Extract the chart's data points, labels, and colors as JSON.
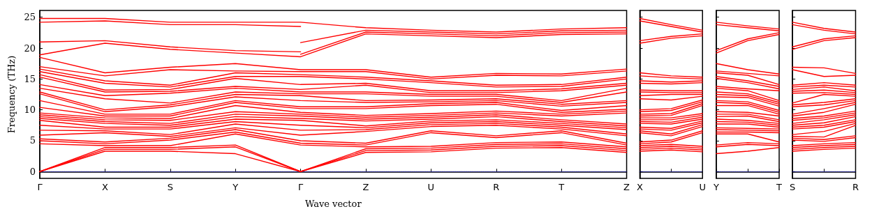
{
  "chart_data": [
    {
      "type": "line",
      "xlabel": "Wave vector",
      "ylabel": "Frequency (THz)",
      "categories": [
        "Γ",
        "X",
        "S",
        "Y",
        "Γ",
        "Z",
        "U",
        "R",
        "T",
        "Z"
      ],
      "ylim": [
        -1.1,
        26.1
      ],
      "yticks": [
        0,
        5,
        10,
        15,
        20,
        25
      ],
      "marker": "none",
      "line_style": "solid",
      "ref_lines": [
        {
          "axis": "y",
          "value": 0,
          "color": "#0000ff",
          "line_style": "dotted"
        }
      ],
      "series": [
        {
          "color": "#ff0000",
          "values": [
            24.8,
            24.8,
            24.2,
            24.2,
            24.2,
            23.3,
            22.9,
            22.6,
            23.1,
            23.3
          ]
        },
        {
          "color": "#ff0000",
          "values": [
            24.2,
            24.4,
            23.8,
            23.8,
            23.5,
            null,
            null,
            null,
            null,
            null
          ]
        },
        {
          "color": "#ff0000",
          "values": [
            null,
            null,
            null,
            null,
            20.9,
            22.9,
            22.6,
            22.3,
            22.8,
            22.9
          ]
        },
        {
          "color": "#ff0000",
          "values": [
            21.0,
            21.2,
            20.2,
            19.6,
            19.4,
            null,
            null,
            null,
            null,
            null
          ]
        },
        {
          "color": "#ff0000",
          "values": [
            null,
            null,
            null,
            null,
            19.0,
            22.6,
            22.3,
            22.0,
            22.5,
            22.6
          ]
        },
        {
          "color": "#ff0000",
          "values": [
            18.9,
            20.8,
            19.8,
            19.2,
            18.6,
            22.3,
            22.0,
            21.7,
            22.2,
            22.3
          ]
        },
        {
          "color": "#ff0000",
          "values": [
            18.5,
            16.0,
            16.9,
            17.5,
            16.5,
            16.5,
            15.3,
            15.9,
            15.8,
            16.6
          ]
        },
        {
          "color": "#ff0000",
          "values": [
            17.0,
            15.5,
            16.5,
            16.3,
            16.2,
            16.2,
            15.0,
            15.6,
            15.5,
            16.3
          ]
        },
        {
          "color": "#ff0000",
          "values": [
            16.6,
            14.7,
            14.0,
            16.0,
            15.7,
            15.3,
            14.7,
            14.0,
            14.1,
            15.3
          ]
        },
        {
          "color": "#ff0000",
          "values": [
            16.2,
            14.3,
            13.7,
            15.4,
            15.4,
            15.0,
            14.4,
            13.7,
            13.8,
            15.0
          ]
        },
        {
          "color": "#ff0000",
          "values": [
            15.7,
            13.2,
            13.3,
            15.1,
            14.1,
            14.3,
            13.1,
            13.1,
            13.4,
            14.3
          ]
        },
        {
          "color": "#ff0000",
          "values": [
            15.3,
            12.9,
            13.0,
            13.8,
            13.3,
            14.0,
            12.8,
            12.8,
            13.1,
            14.0
          ]
        },
        {
          "color": "#ff0000",
          "values": [
            14.1,
            12.3,
            12.7,
            13.5,
            12.9,
            12.9,
            12.5,
            12.5,
            11.5,
            13.5
          ]
        },
        {
          "color": "#ff0000",
          "values": [
            13.5,
            11.8,
            11.1,
            12.9,
            12.6,
            12.6,
            12.2,
            12.2,
            11.2,
            12.9
          ]
        },
        {
          "color": "#ff0000",
          "values": [
            12.9,
            10.0,
            10.8,
            12.5,
            12.3,
            11.5,
            11.6,
            11.8,
            10.9,
            11.5
          ]
        },
        {
          "color": "#ff0000",
          "values": [
            12.6,
            9.7,
            10.5,
            12.1,
            11.5,
            11.2,
            11.3,
            11.5,
            10.6,
            11.2
          ]
        },
        {
          "color": "#ff0000",
          "values": [
            11.5,
            9.3,
            9.3,
            11.5,
            10.5,
            10.5,
            11.0,
            11.2,
            9.9,
            10.7
          ]
        },
        {
          "color": "#ff0000",
          "values": [
            10.4,
            9.0,
            9.0,
            11.2,
            10.2,
            10.2,
            10.7,
            10.9,
            9.6,
            10.1
          ]
        },
        {
          "color": "#ff0000",
          "values": [
            9.5,
            8.7,
            8.6,
            10.7,
            9.6,
            9.1,
            9.4,
            9.8,
            9.3,
            9.8
          ]
        },
        {
          "color": "#ff0000",
          "values": [
            9.2,
            8.4,
            8.3,
            9.7,
            9.3,
            8.8,
            9.1,
            9.5,
            9.0,
            9.5
          ]
        },
        {
          "color": "#ff0000",
          "values": [
            8.9,
            8.1,
            7.8,
            9.3,
            9.0,
            8.5,
            8.8,
            9.2,
            8.4,
            7.7
          ]
        },
        {
          "color": "#ff0000",
          "values": [
            8.6,
            7.8,
            7.5,
            8.9,
            8.6,
            8.2,
            8.5,
            8.9,
            8.1,
            7.4
          ]
        },
        {
          "color": "#ff0000",
          "values": [
            8.3,
            7.2,
            7.2,
            8.5,
            8.3,
            7.4,
            8.2,
            8.4,
            7.8,
            7.1
          ]
        },
        {
          "color": "#ff0000",
          "values": [
            7.5,
            6.9,
            6.9,
            8.1,
            7.5,
            7.1,
            7.9,
            8.1,
            7.5,
            6.8
          ]
        },
        {
          "color": "#ff0000",
          "values": [
            6.7,
            6.6,
            6.0,
            7.7,
            6.7,
            6.8,
            7.6,
            7.8,
            7.2,
            6.1
          ]
        },
        {
          "color": "#ff0000",
          "values": [
            5.9,
            6.3,
            5.7,
            7.1,
            5.9,
            6.5,
            7.3,
            7.5,
            6.9,
            5.8
          ]
        },
        {
          "color": "#ff0000",
          "values": [
            5.3,
            4.8,
            5.4,
            6.8,
            5.0,
            4.6,
            6.6,
            5.8,
            6.6,
            4.6
          ]
        },
        {
          "color": "#ff0000",
          "values": [
            5.0,
            4.5,
            5.1,
            6.4,
            4.6,
            4.3,
            6.3,
            5.5,
            6.3,
            4.3
          ]
        },
        {
          "color": "#ff0000",
          "values": [
            4.5,
            4.2,
            4.2,
            6.1,
            4.3,
            4.0,
            4.1,
            4.7,
            4.8,
            4.0
          ]
        },
        {
          "color": "#ff0000",
          "values": [
            0,
            3.9,
            3.9,
            4.3,
            0,
            3.7,
            3.8,
            4.4,
            4.5,
            3.7
          ]
        },
        {
          "color": "#ff0000",
          "values": [
            0,
            3.6,
            3.6,
            4.0,
            0,
            3.4,
            3.5,
            4.1,
            4.2,
            3.4
          ]
        },
        {
          "color": "#ff0000",
          "values": [
            0,
            3.3,
            3.3,
            2.9,
            0,
            3.1,
            3.2,
            3.8,
            3.9,
            3.1
          ]
        }
      ]
    },
    {
      "type": "line",
      "categories": [
        "X",
        null,
        "U"
      ],
      "ylim": [
        -1.1,
        26.1
      ],
      "yticks": [
        0,
        5,
        10,
        15,
        20,
        25
      ],
      "tick_labels": "x",
      "marker": "none",
      "line_style": "solid",
      "ref_lines": [
        {
          "axis": "y",
          "value": 0,
          "color": "#0000ff",
          "line_style": "dotted"
        }
      ],
      "series": [
        {
          "color": "#ff0000",
          "values": [
            24.8,
            23.8,
            22.9
          ]
        },
        {
          "color": "#ff0000",
          "values": [
            24.4,
            23.5,
            22.6
          ]
        },
        {
          "color": "#ff0000",
          "values": [
            21.2,
            21.9,
            22.3
          ]
        },
        {
          "color": "#ff0000",
          "values": [
            20.8,
            21.6,
            22.0
          ]
        },
        {
          "color": "#ff0000",
          "values": [
            16.0,
            15.5,
            15.3
          ]
        },
        {
          "color": "#ff0000",
          "values": [
            15.5,
            15.2,
            15.0
          ]
        },
        {
          "color": "#ff0000",
          "values": [
            14.7,
            14.5,
            14.7
          ]
        },
        {
          "color": "#ff0000",
          "values": [
            14.3,
            14.2,
            14.4
          ]
        },
        {
          "color": "#ff0000",
          "values": [
            13.2,
            13.1,
            13.1
          ]
        },
        {
          "color": "#ff0000",
          "values": [
            12.9,
            12.8,
            12.8
          ]
        },
        {
          "color": "#ff0000",
          "values": [
            12.3,
            12.5,
            12.5
          ]
        },
        {
          "color": "#ff0000",
          "values": [
            11.8,
            11.6,
            12.2
          ]
        },
        {
          "color": "#ff0000",
          "values": [
            10.0,
            10.2,
            11.6
          ]
        },
        {
          "color": "#ff0000",
          "values": [
            9.7,
            9.9,
            11.3
          ]
        },
        {
          "color": "#ff0000",
          "values": [
            9.3,
            9.4,
            11.0
          ]
        },
        {
          "color": "#ff0000",
          "values": [
            9.0,
            9.1,
            10.7
          ]
        },
        {
          "color": "#ff0000",
          "values": [
            8.7,
            8.7,
            9.4
          ]
        },
        {
          "color": "#ff0000",
          "values": [
            8.4,
            8.4,
            9.1
          ]
        },
        {
          "color": "#ff0000",
          "values": [
            8.1,
            8.0,
            8.8
          ]
        },
        {
          "color": "#ff0000",
          "values": [
            7.8,
            7.7,
            8.5
          ]
        },
        {
          "color": "#ff0000",
          "values": [
            7.2,
            7.0,
            8.2
          ]
        },
        {
          "color": "#ff0000",
          "values": [
            6.9,
            6.7,
            7.9
          ]
        },
        {
          "color": "#ff0000",
          "values": [
            6.6,
            6.1,
            7.6
          ]
        },
        {
          "color": "#ff0000",
          "values": [
            6.3,
            5.8,
            7.3
          ]
        },
        {
          "color": "#ff0000",
          "values": [
            4.8,
            5.1,
            6.6
          ]
        },
        {
          "color": "#ff0000",
          "values": [
            4.5,
            4.8,
            6.3
          ]
        },
        {
          "color": "#ff0000",
          "values": [
            4.2,
            4.4,
            4.1
          ]
        },
        {
          "color": "#ff0000",
          "values": [
            3.9,
            4.1,
            3.8
          ]
        },
        {
          "color": "#ff0000",
          "values": [
            3.6,
            3.8,
            3.5
          ]
        },
        {
          "color": "#ff0000",
          "values": [
            3.3,
            3.5,
            3.2
          ]
        }
      ]
    },
    {
      "type": "line",
      "categories": [
        "Y",
        null,
        "T"
      ],
      "ylim": [
        -1.1,
        26.1
      ],
      "yticks": [
        0,
        5,
        10,
        15,
        20,
        25
      ],
      "tick_labels": "x",
      "marker": "none",
      "line_style": "solid",
      "ref_lines": [
        {
          "axis": "y",
          "value": 0,
          "color": "#0000ff",
          "line_style": "dotted"
        }
      ],
      "series": [
        {
          "color": "#ff0000",
          "values": [
            24.2,
            23.6,
            23.1
          ]
        },
        {
          "color": "#ff0000",
          "values": [
            23.8,
            23.3,
            22.8
          ]
        },
        {
          "color": "#ff0000",
          "values": [
            19.6,
            21.5,
            22.5
          ]
        },
        {
          "color": "#ff0000",
          "values": [
            19.2,
            21.2,
            22.2
          ]
        },
        {
          "color": "#ff0000",
          "values": [
            17.5,
            16.5,
            15.8
          ]
        },
        {
          "color": "#ff0000",
          "values": [
            16.3,
            15.9,
            15.5
          ]
        },
        {
          "color": "#ff0000",
          "values": [
            16.0,
            15.6,
            14.1
          ]
        },
        {
          "color": "#ff0000",
          "values": [
            15.4,
            14.7,
            13.8
          ]
        },
        {
          "color": "#ff0000",
          "values": [
            15.1,
            14.4,
            13.4
          ]
        },
        {
          "color": "#ff0000",
          "values": [
            13.8,
            13.4,
            13.1
          ]
        },
        {
          "color": "#ff0000",
          "values": [
            13.5,
            13.1,
            11.5
          ]
        },
        {
          "color": "#ff0000",
          "values": [
            12.9,
            12.6,
            11.2
          ]
        },
        {
          "color": "#ff0000",
          "values": [
            12.5,
            12.3,
            10.9
          ]
        },
        {
          "color": "#ff0000",
          "values": [
            12.1,
            12.0,
            10.6
          ]
        },
        {
          "color": "#ff0000",
          "values": [
            11.5,
            11.3,
            9.9
          ]
        },
        {
          "color": "#ff0000",
          "values": [
            11.2,
            11.0,
            9.6
          ]
        },
        {
          "color": "#ff0000",
          "values": [
            10.7,
            10.7,
            9.3
          ]
        },
        {
          "color": "#ff0000",
          "values": [
            9.7,
            9.6,
            9.0
          ]
        },
        {
          "color": "#ff0000",
          "values": [
            9.3,
            9.3,
            8.4
          ]
        },
        {
          "color": "#ff0000",
          "values": [
            8.9,
            9.0,
            8.1
          ]
        },
        {
          "color": "#ff0000",
          "values": [
            8.5,
            8.3,
            7.8
          ]
        },
        {
          "color": "#ff0000",
          "values": [
            8.1,
            8.0,
            7.5
          ]
        },
        {
          "color": "#ff0000",
          "values": [
            7.7,
            7.7,
            7.2
          ]
        },
        {
          "color": "#ff0000",
          "values": [
            7.1,
            7.0,
            6.9
          ]
        },
        {
          "color": "#ff0000",
          "values": [
            6.8,
            6.7,
            6.6
          ]
        },
        {
          "color": "#ff0000",
          "values": [
            6.4,
            6.4,
            6.3
          ]
        },
        {
          "color": "#ff0000",
          "values": [
            6.1,
            6.1,
            4.8
          ]
        },
        {
          "color": "#ff0000",
          "values": [
            4.3,
            4.7,
            4.5
          ]
        },
        {
          "color": "#ff0000",
          "values": [
            4.0,
            4.4,
            4.2
          ]
        },
        {
          "color": "#ff0000",
          "values": [
            2.9,
            3.3,
            3.9
          ]
        }
      ]
    },
    {
      "type": "line",
      "categories": [
        "S",
        null,
        "R"
      ],
      "ylim": [
        -1.1,
        26.1
      ],
      "yticks": [
        0,
        5,
        10,
        15,
        20,
        25
      ],
      "tick_labels": "x",
      "marker": "none",
      "line_style": "solid",
      "ref_lines": [
        {
          "axis": "y",
          "value": 0,
          "color": "#0000ff",
          "line_style": "dotted"
        }
      ],
      "series": [
        {
          "color": "#ff0000",
          "values": [
            24.2,
            23.2,
            22.6
          ]
        },
        {
          "color": "#ff0000",
          "values": [
            23.8,
            22.9,
            22.3
          ]
        },
        {
          "color": "#ff0000",
          "values": [
            20.2,
            21.5,
            22.0
          ]
        },
        {
          "color": "#ff0000",
          "values": [
            19.8,
            21.2,
            21.7
          ]
        },
        {
          "color": "#ff0000",
          "values": [
            16.9,
            16.8,
            15.9
          ]
        },
        {
          "color": "#ff0000",
          "values": [
            16.5,
            15.4,
            15.6
          ]
        },
        {
          "color": "#ff0000",
          "values": [
            14.0,
            14.4,
            14.0
          ]
        },
        {
          "color": "#ff0000",
          "values": [
            13.7,
            14.0,
            13.7
          ]
        },
        {
          "color": "#ff0000",
          "values": [
            13.3,
            13.7,
            13.1
          ]
        },
        {
          "color": "#ff0000",
          "values": [
            13.0,
            13.2,
            12.8
          ]
        },
        {
          "color": "#ff0000",
          "values": [
            12.7,
            12.8,
            12.5
          ]
        },
        {
          "color": "#ff0000",
          "values": [
            11.1,
            12.5,
            12.2
          ]
        },
        {
          "color": "#ff0000",
          "values": [
            10.8,
            11.2,
            11.8
          ]
        },
        {
          "color": "#ff0000",
          "values": [
            10.5,
            10.8,
            11.5
          ]
        },
        {
          "color": "#ff0000",
          "values": [
            9.3,
            10.2,
            11.2
          ]
        },
        {
          "color": "#ff0000",
          "values": [
            9.0,
            9.6,
            10.9
          ]
        },
        {
          "color": "#ff0000",
          "values": [
            8.6,
            9.0,
            9.8
          ]
        },
        {
          "color": "#ff0000",
          "values": [
            8.3,
            8.7,
            9.5
          ]
        },
        {
          "color": "#ff0000",
          "values": [
            7.8,
            8.4,
            9.2
          ]
        },
        {
          "color": "#ff0000",
          "values": [
            7.5,
            7.9,
            8.9
          ]
        },
        {
          "color": "#ff0000",
          "values": [
            7.2,
            7.5,
            8.4
          ]
        },
        {
          "color": "#ff0000",
          "values": [
            6.9,
            7.2,
            8.1
          ]
        },
        {
          "color": "#ff0000",
          "values": [
            6.0,
            6.5,
            7.8
          ]
        },
        {
          "color": "#ff0000",
          "values": [
            5.7,
            5.6,
            7.5
          ]
        },
        {
          "color": "#ff0000",
          "values": [
            5.4,
            5.2,
            5.8
          ]
        },
        {
          "color": "#ff0000",
          "values": [
            5.1,
            4.9,
            5.5
          ]
        },
        {
          "color": "#ff0000",
          "values": [
            4.2,
            4.5,
            4.7
          ]
        },
        {
          "color": "#ff0000",
          "values": [
            3.9,
            4.2,
            4.4
          ]
        },
        {
          "color": "#ff0000",
          "values": [
            3.6,
            3.9,
            4.1
          ]
        },
        {
          "color": "#ff0000",
          "values": [
            3.3,
            3.6,
            3.8
          ]
        }
      ]
    }
  ]
}
